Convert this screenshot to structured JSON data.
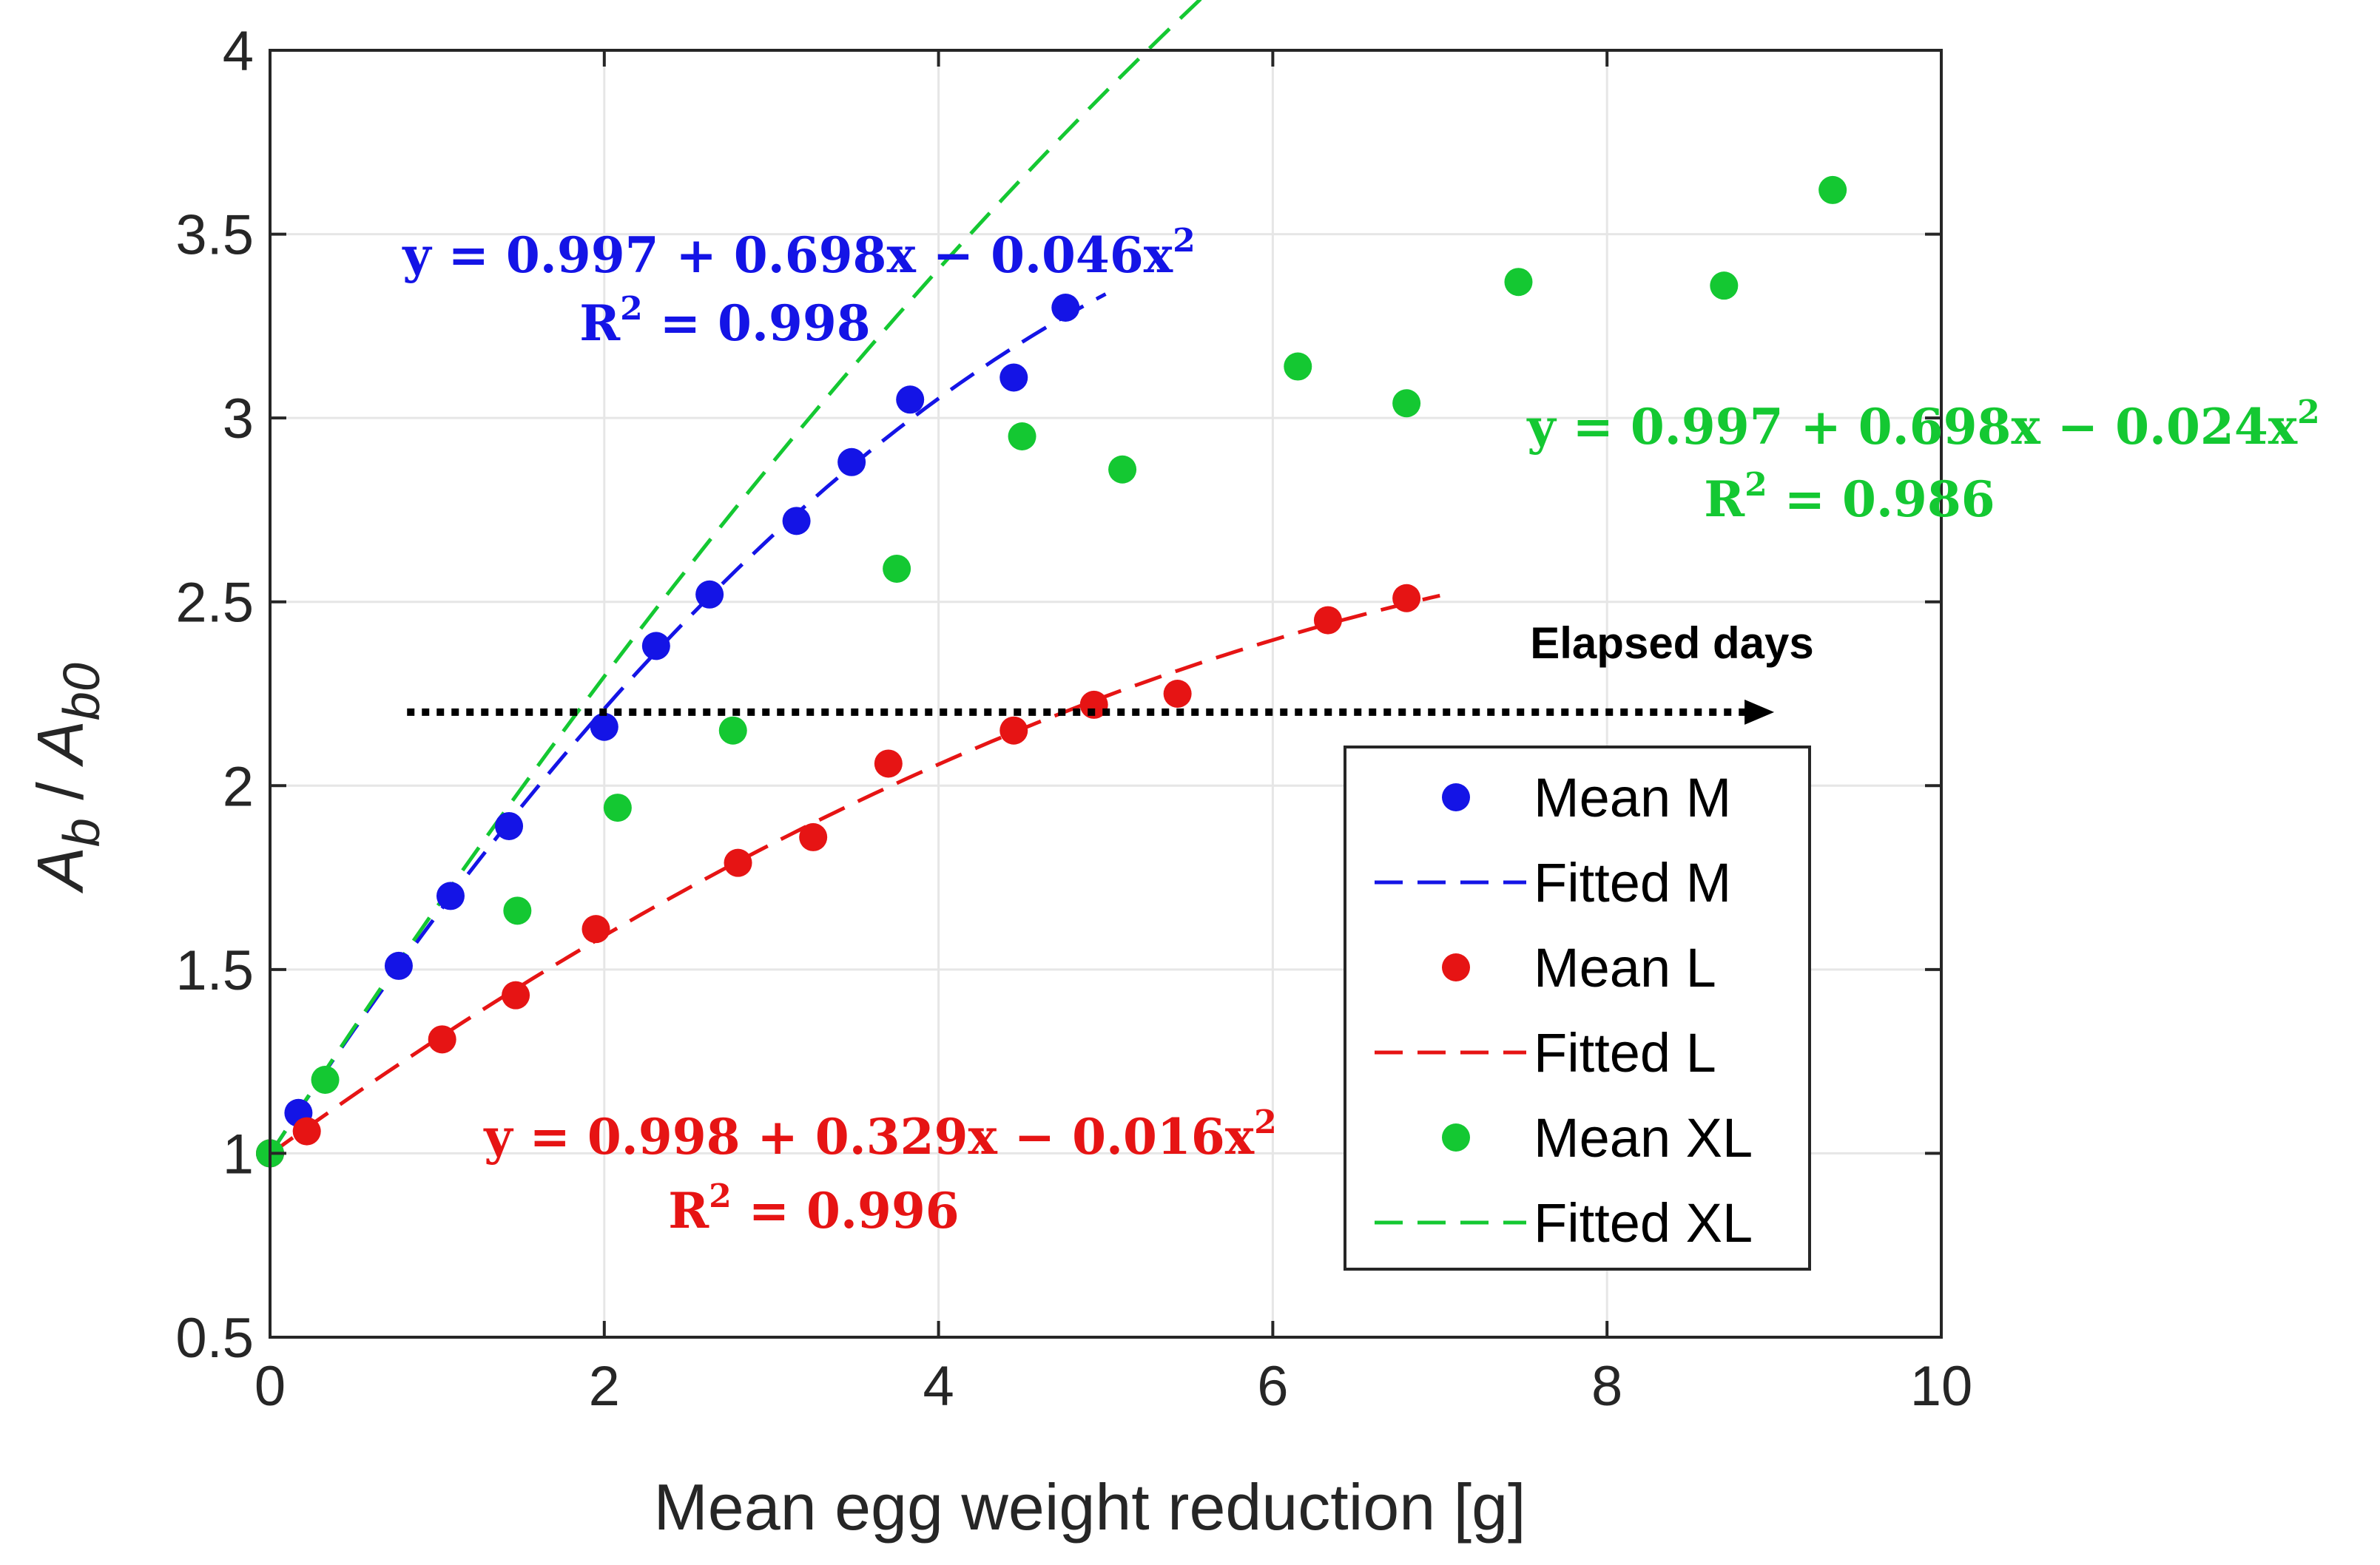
{
  "chart_data": {
    "type": "scatter",
    "xlabel": "Mean egg weight reduction [g]",
    "ylabel": {
      "base": "A",
      "sub_num": "b",
      "sep": " / ",
      "sub_den": "b0"
    },
    "xlim": [
      0,
      10
    ],
    "ylim": [
      0.5,
      4
    ],
    "xticks": [
      0,
      2,
      4,
      6,
      8,
      10
    ],
    "xtick_labels": [
      "0",
      "2",
      "4",
      "6",
      "8",
      "10"
    ],
    "yticks": [
      0.5,
      1,
      1.5,
      2,
      2.5,
      3,
      3.5,
      4
    ],
    "ytick_labels": [
      "0.5",
      "1",
      "1.5",
      "2",
      "2.5",
      "3",
      "3.5",
      "4"
    ],
    "grid": true,
    "legend_position": "lower-right",
    "series": [
      {
        "name": "Mean M",
        "fit_name": "Fitted M",
        "color": "#1414e6",
        "x": [
          0,
          0.17,
          0.77,
          1.08,
          1.43,
          2.0,
          2.31,
          2.63,
          3.15,
          3.48,
          3.83,
          4.45,
          4.76
        ],
        "y": [
          1.0,
          1.11,
          1.51,
          1.7,
          1.89,
          2.16,
          2.38,
          2.52,
          2.72,
          2.88,
          3.05,
          3.11,
          3.3
        ],
        "fit": {
          "a": 0.997,
          "b": 0.698,
          "c": -0.046,
          "xmax": 5.0
        },
        "equation": "y = 0.997 + 0.698x − 0.046x",
        "r2": "R",
        "r2_value": " = 0.998"
      },
      {
        "name": "Mean L",
        "fit_name": "Fitted L",
        "color": "#e61414",
        "x": [
          0,
          0.22,
          1.03,
          1.47,
          1.95,
          2.8,
          3.25,
          3.7,
          4.45,
          4.93,
          5.43,
          6.33,
          6.8
        ],
        "y": [
          1.0,
          1.06,
          1.31,
          1.43,
          1.61,
          1.79,
          1.86,
          2.06,
          2.15,
          2.22,
          2.25,
          2.45,
          2.51
        ],
        "fit": {
          "a": 0.998,
          "b": 0.329,
          "c": -0.016,
          "xmax": 7.0
        },
        "equation": "y = 0.998 + 0.329x − 0.016x",
        "r2": "R",
        "r2_value": " = 0.996"
      },
      {
        "name": "Mean XL",
        "fit_name": "Fitted XL",
        "color": "#14c832",
        "x": [
          0,
          0.33,
          1.48,
          2.08,
          2.77,
          3.75,
          4.5,
          5.1,
          6.15,
          6.8,
          7.47,
          8.7,
          9.35
        ],
        "y": [
          1.0,
          1.2,
          1.66,
          1.94,
          2.15,
          2.59,
          2.95,
          2.86,
          3.14,
          3.04,
          3.37,
          3.36,
          3.62
        ],
        "fit": {
          "a": 0.997,
          "b": 0.698,
          "c": -0.024,
          "xmax": 10.0
        },
        "equation": "y = 0.997 + 0.698x − 0.024x",
        "r2": "R",
        "r2_value": " = 0.986"
      }
    ],
    "superscript": "2",
    "annotation": {
      "text": "Elapsed days",
      "x_start": 0.82,
      "x_end": 9.0,
      "y": 2.2
    }
  }
}
